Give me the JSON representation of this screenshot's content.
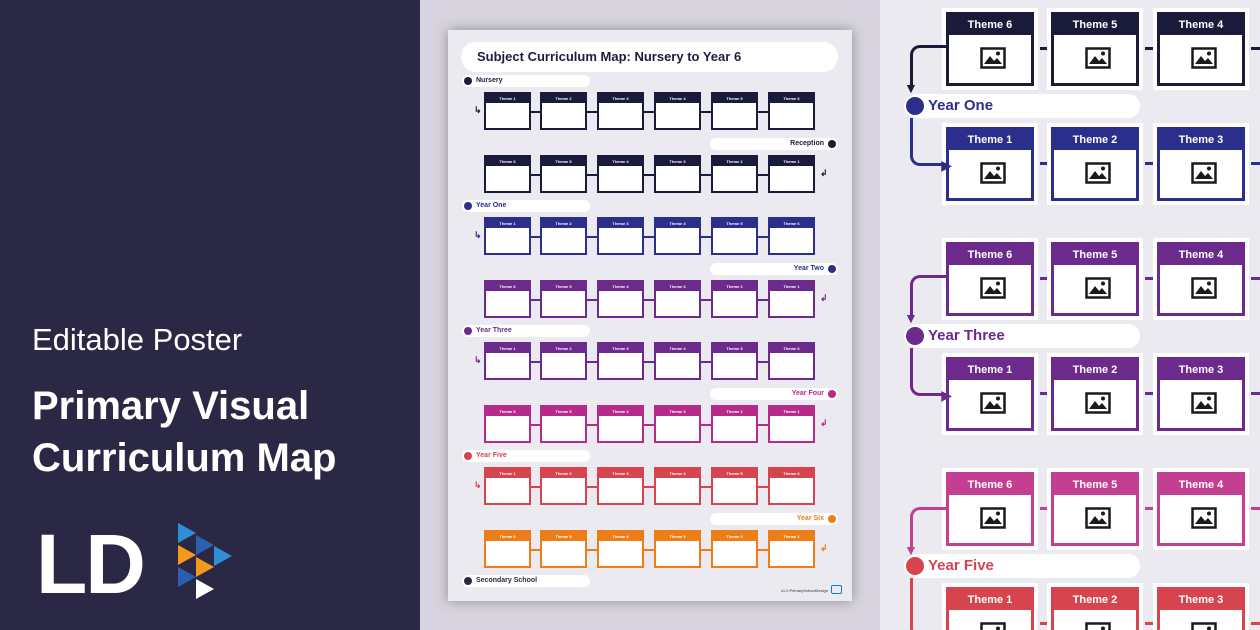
{
  "promo": {
    "subtitle": "Editable Poster",
    "title": "Primary Visual Curriculum Map",
    "brand": "LD"
  },
  "poster": {
    "title": "Subject Curriculum Map: Nursery to Year 6",
    "credit": "v1.0 PrimarySchoolDesign",
    "stage_labels": [
      {
        "text": "Nursery",
        "color": "#1a1a3a"
      },
      {
        "text": "Reception",
        "color": "#1a1a3a"
      },
      {
        "text": "Year One",
        "color": "#2b2e8a"
      },
      {
        "text": "Year Two",
        "color": "#2b2e8a"
      },
      {
        "text": "Year Three",
        "color": "#6b2a8c"
      },
      {
        "text": "Year Four",
        "color": "#b62a8a"
      },
      {
        "text": "Year Five",
        "color": "#d6444d"
      },
      {
        "text": "Year Six",
        "color": "#ec7d17"
      },
      {
        "text": "Secondary School",
        "color": "#2b2845"
      }
    ],
    "rows": [
      {
        "color": "#1a1a3a",
        "themes": [
          "Theme 1",
          "Theme 2",
          "Theme 3",
          "Theme 4",
          "Theme 5",
          "Theme 6"
        ]
      },
      {
        "color": "#1a1a3a",
        "themes": [
          "Theme 6",
          "Theme 5",
          "Theme 4",
          "Theme 3",
          "Theme 2",
          "Theme 1"
        ]
      },
      {
        "color": "#2b2e8a",
        "themes": [
          "Theme 1",
          "Theme 2",
          "Theme 3",
          "Theme 4",
          "Theme 5",
          "Theme 6"
        ]
      },
      {
        "color": "#6b2a8c",
        "themes": [
          "Theme 6",
          "Theme 5",
          "Theme 4",
          "Theme 3",
          "Theme 2",
          "Theme 1"
        ]
      },
      {
        "color": "#6b2a8c",
        "themes": [
          "Theme 1",
          "Theme 2",
          "Theme 3",
          "Theme 4",
          "Theme 5",
          "Theme 6"
        ]
      },
      {
        "color": "#b62a8a",
        "themes": [
          "Theme 6",
          "Theme 5",
          "Theme 4",
          "Theme 3",
          "Theme 2",
          "Theme 1"
        ]
      },
      {
        "color": "#d6444d",
        "themes": [
          "Theme 1",
          "Theme 2",
          "Theme 3",
          "Theme 4",
          "Theme 5",
          "Theme 6"
        ]
      },
      {
        "color": "#ec7d17",
        "themes": [
          "Theme 6",
          "Theme 5",
          "Theme 4",
          "Theme 3",
          "Theme 2",
          "Theme 1"
        ]
      }
    ]
  },
  "zoom": {
    "rows": [
      {
        "color": "#1a1a3a",
        "themes": [
          "Theme 6",
          "Theme 5",
          "Theme 4"
        ]
      },
      {
        "color": "#2b2e8a",
        "themes": [
          "Theme 1",
          "Theme 2",
          "Theme 3"
        ]
      },
      {
        "color": "#6b2a8c",
        "themes": [
          "Theme 6",
          "Theme 5",
          "Theme 4"
        ]
      },
      {
        "color": "#6b2a8c",
        "themes": [
          "Theme 1",
          "Theme 2",
          "Theme 3"
        ]
      },
      {
        "color": "#c23f92",
        "themes": [
          "Theme 6",
          "Theme 5",
          "Theme 4"
        ]
      },
      {
        "color": "#d6444d",
        "themes": [
          "Theme 1",
          "Theme 2",
          "Theme 3"
        ]
      }
    ],
    "labels": [
      {
        "text": "Year One",
        "color": "#2b2e8a"
      },
      {
        "text": "Year Three",
        "color": "#6b2a8c"
      },
      {
        "text": "Year Five",
        "color": "#d6444d"
      }
    ],
    "icon": "image-icon"
  }
}
